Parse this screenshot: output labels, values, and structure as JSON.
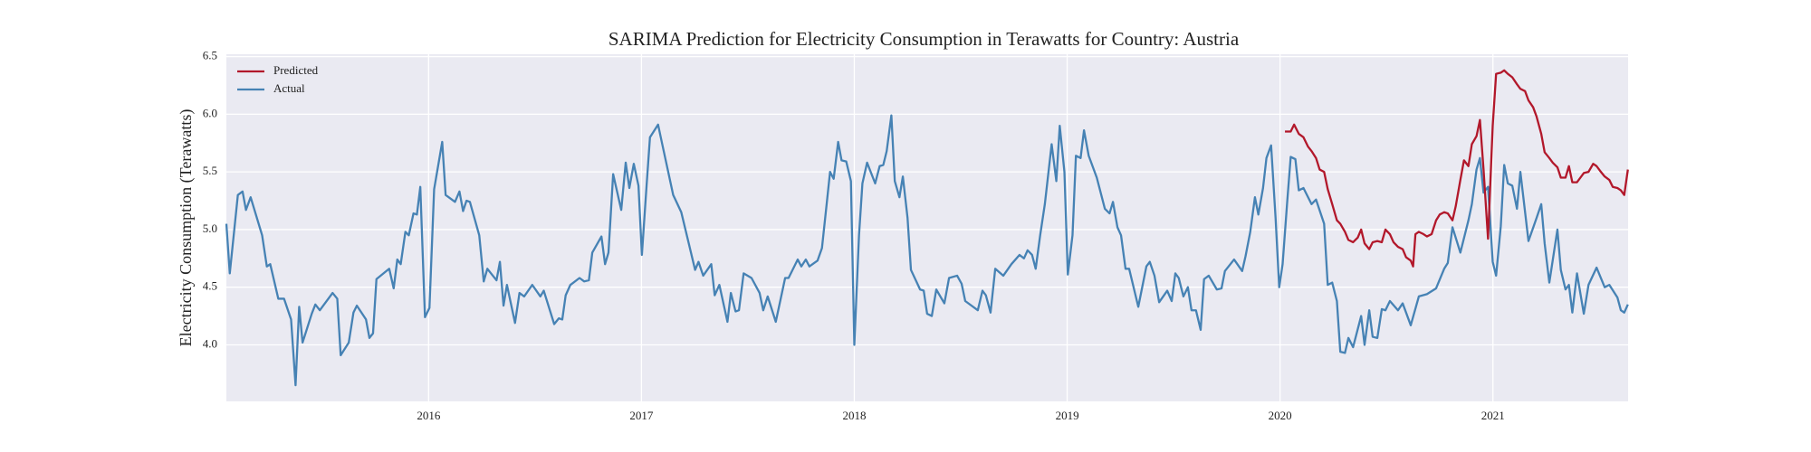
{
  "chart_data": {
    "type": "line",
    "title": "SARIMA Prediction for Electricity Consumption in Terawatts for Country: Austria",
    "ylabel": "Electricity Consumption (Terawatts)",
    "xlim": [
      2015.05,
      2021.635
    ],
    "ylim": [
      3.51,
      6.52
    ],
    "xticks": [
      2016,
      2017,
      2018,
      2019,
      2020,
      2021
    ],
    "yticks": [
      {
        "value": 4,
        "label": "4.0"
      },
      4.5,
      {
        "value": 5,
        "label": "5.0"
      },
      5.5,
      {
        "value": 6,
        "label": "6.0"
      },
      6.5
    ],
    "grid": true,
    "legend": "upper left",
    "series": [
      {
        "name": "Predicted",
        "color": "#b2182b",
        "x": [
          2020.023,
          2020.05,
          2020.066,
          2020.088,
          2020.11,
          2020.131,
          2020.148,
          2020.169,
          2020.186,
          2020.207,
          2020.224,
          2020.245,
          2020.267,
          2020.283,
          2020.305,
          2020.321,
          2020.343,
          2020.365,
          2020.381,
          2020.397,
          2020.419,
          2020.435,
          2020.457,
          2020.478,
          2020.495,
          2020.516,
          2020.533,
          2020.554,
          2020.576,
          2020.592,
          2020.614,
          2020.625,
          2020.636,
          2020.652,
          2020.674,
          2020.69,
          2020.712,
          2020.733,
          2020.75,
          2020.771,
          2020.788,
          2020.81,
          2020.825,
          2020.847,
          2020.864,
          2020.885,
          2020.901,
          2020.923,
          2020.939,
          2020.956,
          2020.977,
          2020.999,
          2021.015,
          2021.037,
          2021.053,
          2021.07,
          2021.091,
          2021.113,
          2021.129,
          2021.151,
          2021.167,
          2021.189,
          2021.205,
          2021.227,
          2021.243,
          2021.265,
          2021.281,
          2021.303,
          2021.319,
          2021.341,
          2021.357,
          2021.373,
          2021.395,
          2021.411,
          2021.427,
          2021.449,
          2021.471,
          2021.487,
          2021.503,
          2021.525,
          2021.547,
          2021.563,
          2021.585,
          2021.601,
          2021.617,
          2021.634
        ],
        "values": [
          5.85,
          5.85,
          5.91,
          5.83,
          5.8,
          5.72,
          5.68,
          5.62,
          5.52,
          5.5,
          5.35,
          5.22,
          5.08,
          5.05,
          4.98,
          4.91,
          4.89,
          4.93,
          5.0,
          4.88,
          4.83,
          4.89,
          4.9,
          4.89,
          5.0,
          4.96,
          4.89,
          4.85,
          4.83,
          4.76,
          4.73,
          4.68,
          4.96,
          4.98,
          4.96,
          4.94,
          4.96,
          5.08,
          5.13,
          5.15,
          5.14,
          5.08,
          5.2,
          5.43,
          5.6,
          5.55,
          5.74,
          5.81,
          5.95,
          5.52,
          4.92,
          5.9,
          6.35,
          6.36,
          6.38,
          6.35,
          6.32,
          6.26,
          6.22,
          6.2,
          6.12,
          6.06,
          5.98,
          5.83,
          5.67,
          5.62,
          5.58,
          5.54,
          5.45,
          5.45,
          5.55,
          5.41,
          5.41,
          5.45,
          5.49,
          5.5,
          5.57,
          5.55,
          5.51,
          5.46,
          5.43,
          5.37,
          5.36,
          5.34,
          5.3,
          5.52
        ]
      },
      {
        "name": "Actual",
        "color": "#4682b4",
        "x": [
          2015.05,
          2015.066,
          2015.104,
          2015.126,
          2015.142,
          2015.164,
          2015.218,
          2015.24,
          2015.256,
          2015.294,
          2015.321,
          2015.354,
          2015.375,
          2015.392,
          2015.408,
          2015.451,
          2015.468,
          2015.489,
          2015.549,
          2015.571,
          2015.587,
          2015.625,
          2015.647,
          2015.663,
          2015.706,
          2015.722,
          2015.739,
          2015.755,
          2015.815,
          2015.836,
          2015.853,
          2015.869,
          2015.891,
          2015.907,
          2015.929,
          2015.945,
          2015.961,
          2015.983,
          2016.004,
          2016.026,
          2016.064,
          2016.08,
          2016.124,
          2016.145,
          2016.162,
          2016.178,
          2016.194,
          2016.238,
          2016.259,
          2016.276,
          2016.319,
          2016.335,
          2016.352,
          2016.368,
          2016.406,
          2016.427,
          2016.449,
          2016.487,
          2016.525,
          2016.541,
          2016.59,
          2016.612,
          2016.628,
          2016.644,
          2016.666,
          2016.709,
          2016.731,
          2016.753,
          2016.769,
          2016.812,
          2016.829,
          2016.845,
          2016.867,
          2016.905,
          2016.926,
          2016.943,
          2016.964,
          2016.986,
          2017.002,
          2017.024,
          2017.04,
          2017.078,
          2017.1,
          2017.149,
          2017.187,
          2017.23,
          2017.252,
          2017.268,
          2017.29,
          2017.328,
          2017.344,
          2017.366,
          2017.404,
          2017.42,
          2017.442,
          2017.458,
          2017.48,
          2017.517,
          2017.555,
          2017.572,
          2017.593,
          2017.631,
          2017.675,
          2017.691,
          2017.734,
          2017.751,
          2017.772,
          2017.789,
          2017.827,
          2017.848,
          2017.87,
          2017.886,
          2017.903,
          2017.924,
          2017.94,
          2017.962,
          2017.984,
          2018.0,
          2018.022,
          2018.038,
          2018.06,
          2018.098,
          2018.119,
          2018.136,
          2018.152,
          2018.174,
          2018.19,
          2018.212,
          2018.228,
          2018.25,
          2018.266,
          2018.309,
          2018.326,
          2018.342,
          2018.364,
          2018.385,
          2018.423,
          2018.445,
          2018.483,
          2018.504,
          2018.521,
          2018.58,
          2018.602,
          2018.618,
          2018.64,
          2018.662,
          2018.7,
          2018.738,
          2018.776,
          2018.797,
          2018.814,
          2018.835,
          2018.852,
          2018.873,
          2018.895,
          2018.927,
          2018.949,
          2018.965,
          2018.987,
          2019.003,
          2019.025,
          2019.041,
          2019.063,
          2019.079,
          2019.101,
          2019.139,
          2019.177,
          2019.199,
          2019.215,
          2019.236,
          2019.253,
          2019.274,
          2019.291,
          2019.334,
          2019.372,
          2019.388,
          2019.41,
          2019.432,
          2019.47,
          2019.491,
          2019.508,
          2019.524,
          2019.546,
          2019.567,
          2019.584,
          2019.605,
          2019.627,
          2019.643,
          2019.665,
          2019.703,
          2019.725,
          2019.741,
          2019.784,
          2019.822,
          2019.838,
          2019.86,
          2019.882,
          2019.898,
          2019.92,
          2019.936,
          2019.958,
          2019.979,
          2019.996,
          2020.012,
          2020.034,
          2020.05,
          2020.072,
          2020.088,
          2020.11,
          2020.148,
          2020.169,
          2020.207,
          2020.224,
          2020.245,
          2020.267,
          2020.283,
          2020.305,
          2020.321,
          2020.343,
          2020.381,
          2020.397,
          2020.419,
          2020.435,
          2020.457,
          2020.478,
          2020.495,
          2020.516,
          2020.554,
          2020.576,
          2020.614,
          2020.652,
          2020.69,
          2020.733,
          2020.771,
          2020.788,
          2020.81,
          2020.847,
          2020.885,
          2020.901,
          2020.923,
          2020.939,
          2020.956,
          2020.977,
          2020.999,
          2021.015,
          2021.037,
          2021.053,
          2021.07,
          2021.091,
          2021.113,
          2021.129,
          2021.167,
          2021.205,
          2021.227,
          2021.243,
          2021.265,
          2021.303,
          2021.319,
          2021.341,
          2021.357,
          2021.373,
          2021.395,
          2021.427,
          2021.449,
          2021.487,
          2021.525,
          2021.547,
          2021.585,
          2021.601,
          2021.617,
          2021.634
        ],
        "values": [
          5.05,
          4.62,
          5.3,
          5.33,
          5.17,
          5.28,
          4.95,
          4.68,
          4.7,
          4.4,
          4.4,
          4.22,
          3.65,
          4.33,
          4.02,
          4.27,
          4.35,
          4.3,
          4.45,
          4.4,
          3.91,
          4.02,
          4.28,
          4.34,
          4.22,
          4.06,
          4.1,
          4.57,
          4.66,
          4.49,
          4.74,
          4.7,
          4.98,
          4.95,
          5.14,
          5.13,
          5.37,
          4.24,
          4.32,
          5.35,
          5.76,
          5.3,
          5.24,
          5.33,
          5.16,
          5.25,
          5.24,
          4.95,
          4.55,
          4.66,
          4.56,
          4.72,
          4.34,
          4.52,
          4.19,
          4.45,
          4.42,
          4.52,
          4.42,
          4.47,
          4.18,
          4.23,
          4.22,
          4.43,
          4.52,
          4.58,
          4.55,
          4.56,
          4.8,
          4.94,
          4.7,
          4.8,
          5.48,
          5.17,
          5.58,
          5.36,
          5.57,
          5.38,
          4.78,
          5.38,
          5.8,
          5.91,
          5.72,
          5.3,
          5.15,
          4.82,
          4.65,
          4.72,
          4.6,
          4.7,
          4.43,
          4.52,
          4.2,
          4.45,
          4.29,
          4.3,
          4.62,
          4.58,
          4.45,
          4.3,
          4.42,
          4.2,
          4.58,
          4.58,
          4.74,
          4.68,
          4.74,
          4.68,
          4.73,
          4.84,
          5.22,
          5.5,
          5.44,
          5.76,
          5.6,
          5.59,
          5.42,
          4.0,
          4.95,
          5.4,
          5.58,
          5.4,
          5.55,
          5.56,
          5.68,
          5.99,
          5.42,
          5.28,
          5.46,
          5.1,
          4.65,
          4.48,
          4.47,
          4.27,
          4.25,
          4.48,
          4.36,
          4.58,
          4.6,
          4.53,
          4.38,
          4.3,
          4.47,
          4.43,
          4.28,
          4.66,
          4.6,
          4.7,
          4.78,
          4.75,
          4.82,
          4.78,
          4.66,
          4.95,
          5.22,
          5.74,
          5.42,
          5.9,
          5.5,
          4.61,
          4.95,
          5.64,
          5.62,
          5.86,
          5.64,
          5.45,
          5.18,
          5.14,
          5.24,
          5.02,
          4.95,
          4.66,
          4.66,
          4.33,
          4.68,
          4.72,
          4.6,
          4.37,
          4.47,
          4.38,
          4.62,
          4.58,
          4.42,
          4.5,
          4.3,
          4.3,
          4.13,
          4.57,
          4.6,
          4.48,
          4.49,
          4.64,
          4.74,
          4.64,
          4.77,
          4.98,
          5.28,
          5.13,
          5.36,
          5.62,
          5.73,
          5.1,
          4.5,
          4.7,
          5.25,
          5.63,
          5.61,
          5.34,
          5.36,
          5.22,
          5.26,
          5.05,
          4.52,
          4.54,
          4.38,
          3.94,
          3.93,
          4.06,
          3.98,
          4.25,
          4.0,
          4.3,
          4.07,
          4.06,
          4.31,
          4.3,
          4.38,
          4.3,
          4.36,
          4.17,
          4.42,
          4.44,
          4.49,
          4.66,
          4.71,
          5.02,
          4.8,
          5.08,
          5.22,
          5.52,
          5.62,
          5.32,
          5.37,
          4.72,
          4.6,
          5.03,
          5.56,
          5.4,
          5.38,
          5.18,
          5.5,
          4.9,
          5.1,
          5.22,
          4.88,
          4.54,
          5.0,
          4.65,
          4.48,
          4.52,
          4.28,
          4.62,
          4.27,
          4.52,
          4.67,
          4.5,
          4.52,
          4.41,
          4.3,
          4.28,
          4.35
        ]
      }
    ]
  }
}
